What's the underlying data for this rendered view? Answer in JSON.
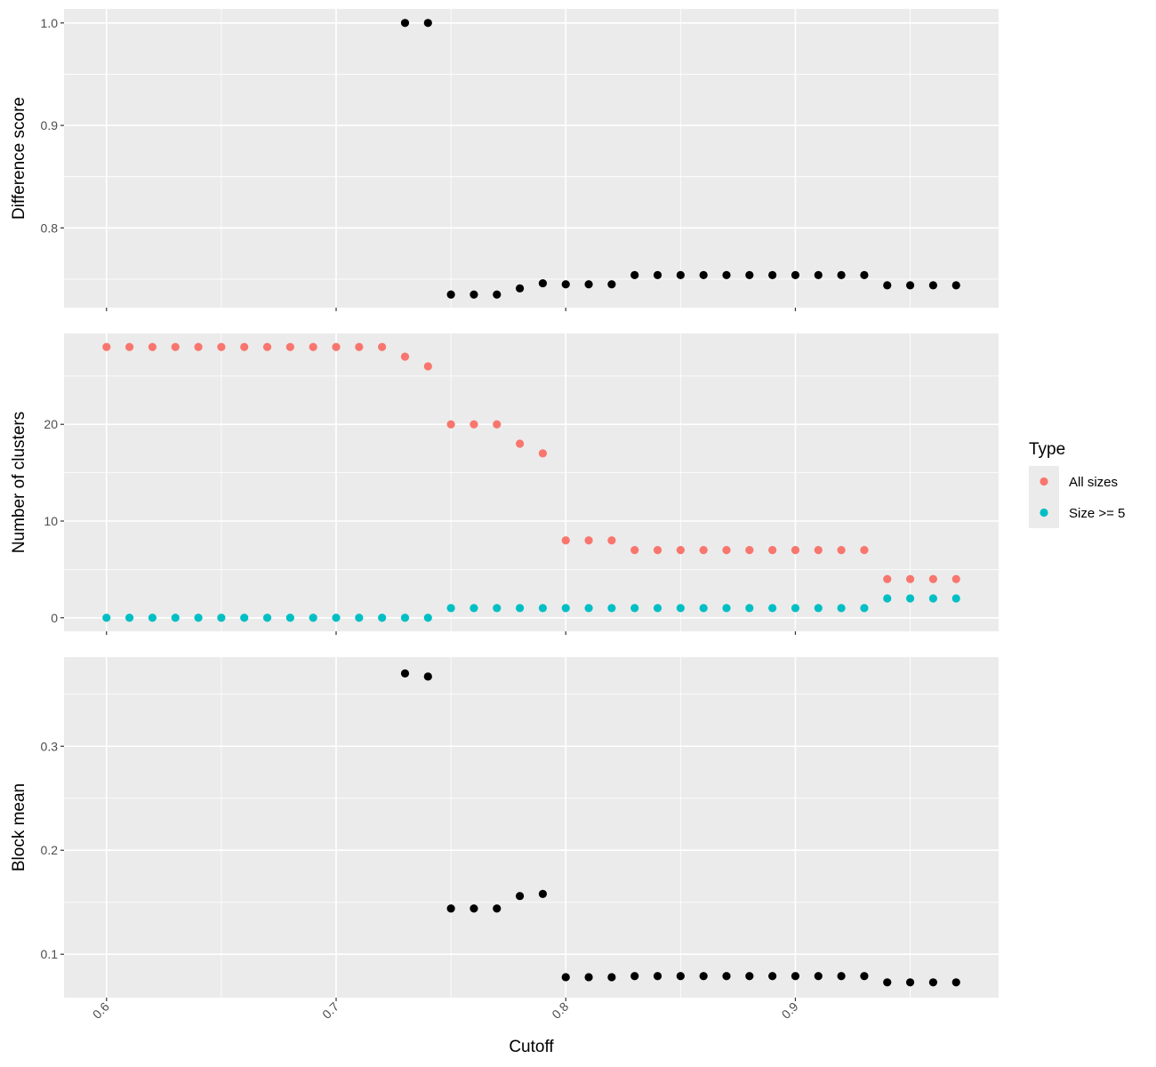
{
  "chart_data": {
    "type": "scatter",
    "xlabel": "Cutoff",
    "x_ticks": [
      0.6,
      0.7,
      0.8,
      0.9
    ],
    "x_tick_labels": [
      "0.6",
      "0.7",
      "0.8",
      "0.9"
    ],
    "xlim": [
      0.5815,
      0.9885
    ],
    "grid": true,
    "legend": {
      "title": "Type",
      "placement": "right",
      "entries": [
        {
          "label": "All sizes",
          "color": "#f8766d"
        },
        {
          "label": "Size >= 5",
          "color": "#00bfc4"
        }
      ]
    },
    "panels": [
      {
        "ylabel": "Difference score",
        "ylim": [
          0.7222,
          1.0137
        ],
        "y_ticks": [
          0.8,
          0.9,
          1.0
        ],
        "y_tick_labels": [
          "0.8",
          "0.9",
          "1.0"
        ],
        "series": [
          {
            "color": "#000000",
            "x": [
              0.73,
              0.74,
              0.75,
              0.76,
              0.77,
              0.78,
              0.79,
              0.8,
              0.81,
              0.82,
              0.83,
              0.84,
              0.85,
              0.86,
              0.87,
              0.88,
              0.89,
              0.9,
              0.91,
              0.92,
              0.93,
              0.94,
              0.95,
              0.96,
              0.97
            ],
            "values": [
              1.0,
              1.0,
              0.735,
              0.735,
              0.735,
              0.741,
              0.746,
              0.745,
              0.745,
              0.745,
              0.754,
              0.754,
              0.754,
              0.754,
              0.754,
              0.754,
              0.754,
              0.754,
              0.754,
              0.754,
              0.754,
              0.744,
              0.744,
              0.744,
              0.744
            ]
          }
        ]
      },
      {
        "ylabel": "Number of clusters",
        "ylim": [
          -1.4,
          29.4
        ],
        "y_ticks": [
          0,
          10,
          20
        ],
        "y_tick_labels": [
          "0",
          "10",
          "20"
        ],
        "series": [
          {
            "name": "All sizes",
            "color": "#f8766d",
            "x": [
              0.6,
              0.61,
              0.62,
              0.63,
              0.64,
              0.65,
              0.66,
              0.67,
              0.68,
              0.69,
              0.7,
              0.71,
              0.72,
              0.73,
              0.74,
              0.75,
              0.76,
              0.77,
              0.78,
              0.79,
              0.8,
              0.81,
              0.82,
              0.83,
              0.84,
              0.85,
              0.86,
              0.87,
              0.88,
              0.89,
              0.9,
              0.91,
              0.92,
              0.93,
              0.94,
              0.95,
              0.96,
              0.97
            ],
            "values": [
              28,
              28,
              28,
              28,
              28,
              28,
              28,
              28,
              28,
              28,
              28,
              28,
              28,
              27,
              26,
              20,
              20,
              20,
              18,
              17,
              8,
              8,
              8,
              7,
              7,
              7,
              7,
              7,
              7,
              7,
              7,
              7,
              7,
              7,
              4,
              4,
              4,
              4
            ]
          },
          {
            "name": "Size >= 5",
            "color": "#00bfc4",
            "x": [
              0.6,
              0.61,
              0.62,
              0.63,
              0.64,
              0.65,
              0.66,
              0.67,
              0.68,
              0.69,
              0.7,
              0.71,
              0.72,
              0.73,
              0.74,
              0.75,
              0.76,
              0.77,
              0.78,
              0.79,
              0.8,
              0.81,
              0.82,
              0.83,
              0.84,
              0.85,
              0.86,
              0.87,
              0.88,
              0.89,
              0.9,
              0.91,
              0.92,
              0.93,
              0.94,
              0.95,
              0.96,
              0.97
            ],
            "values": [
              0,
              0,
              0,
              0,
              0,
              0,
              0,
              0,
              0,
              0,
              0,
              0,
              0,
              0,
              0,
              1,
              1,
              1,
              1,
              1,
              1,
              1,
              1,
              1,
              1,
              1,
              1,
              1,
              1,
              1,
              1,
              1,
              1,
              1,
              2,
              2,
              2,
              2
            ]
          }
        ]
      },
      {
        "ylabel": "Block mean",
        "ylim": [
          0.0583,
          0.3857
        ],
        "y_ticks": [
          0.1,
          0.2,
          0.3
        ],
        "y_tick_labels": [
          "0.1",
          "0.2",
          "0.3"
        ],
        "series": [
          {
            "color": "#000000",
            "x": [
              0.73,
              0.74,
              0.75,
              0.76,
              0.77,
              0.78,
              0.79,
              0.8,
              0.81,
              0.82,
              0.83,
              0.84,
              0.85,
              0.86,
              0.87,
              0.88,
              0.89,
              0.9,
              0.91,
              0.92,
              0.93,
              0.94,
              0.95,
              0.96,
              0.97
            ],
            "values": [
              0.37,
              0.367,
              0.144,
              0.144,
              0.144,
              0.156,
              0.158,
              0.078,
              0.078,
              0.078,
              0.079,
              0.079,
              0.079,
              0.079,
              0.079,
              0.079,
              0.079,
              0.079,
              0.079,
              0.079,
              0.079,
              0.073,
              0.073,
              0.073,
              0.073
            ]
          }
        ]
      }
    ]
  }
}
